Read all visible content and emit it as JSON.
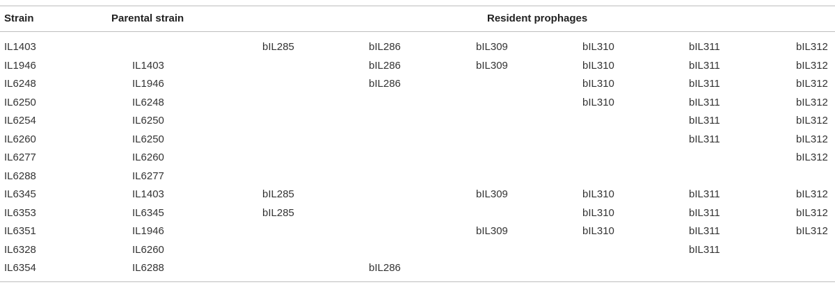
{
  "table": {
    "headers": {
      "strain": "Strain",
      "parental_strain": "Parental strain",
      "resident_prophages": "Resident prophages"
    },
    "rows": [
      [
        "IL1403",
        "",
        "bIL285",
        "bIL286",
        "bIL309",
        "bIL310",
        "bIL311",
        "bIL312"
      ],
      [
        "IL1946",
        "IL1403",
        "",
        "bIL286",
        "bIL309",
        "bIL310",
        "bIL311",
        "bIL312"
      ],
      [
        "IL6248",
        "IL1946",
        "",
        "bIL286",
        "",
        "bIL310",
        "bIL311",
        "bIL312"
      ],
      [
        "IL6250",
        "IL6248",
        "",
        "",
        "",
        "bIL310",
        "bIL311",
        "bIL312"
      ],
      [
        "IL6254",
        "IL6250",
        "",
        "",
        "",
        "",
        "bIL311",
        "bIL312"
      ],
      [
        "IL6260",
        "IL6250",
        "",
        "",
        "",
        "",
        "bIL311",
        "bIL312"
      ],
      [
        "IL6277",
        "IL6260",
        "",
        "",
        "",
        "",
        "",
        "bIL312"
      ],
      [
        "IL6288",
        "IL6277",
        "",
        "",
        "",
        "",
        "",
        ""
      ],
      [
        "IL6345",
        "IL1403",
        "bIL285",
        "",
        "bIL309",
        "bIL310",
        "bIL311",
        "bIL312"
      ],
      [
        "IL6353",
        "IL6345",
        "bIL285",
        "",
        "",
        "bIL310",
        "bIL311",
        "bIL312"
      ],
      [
        "IL6351",
        "IL1946",
        "",
        "",
        "bIL309",
        "bIL310",
        "bIL311",
        "bIL312"
      ],
      [
        "IL6328",
        "IL6260",
        "",
        "",
        "",
        "",
        "bIL311",
        ""
      ],
      [
        "IL6354",
        "IL6288",
        "",
        "bIL286",
        "",
        "",
        "",
        ""
      ]
    ]
  }
}
